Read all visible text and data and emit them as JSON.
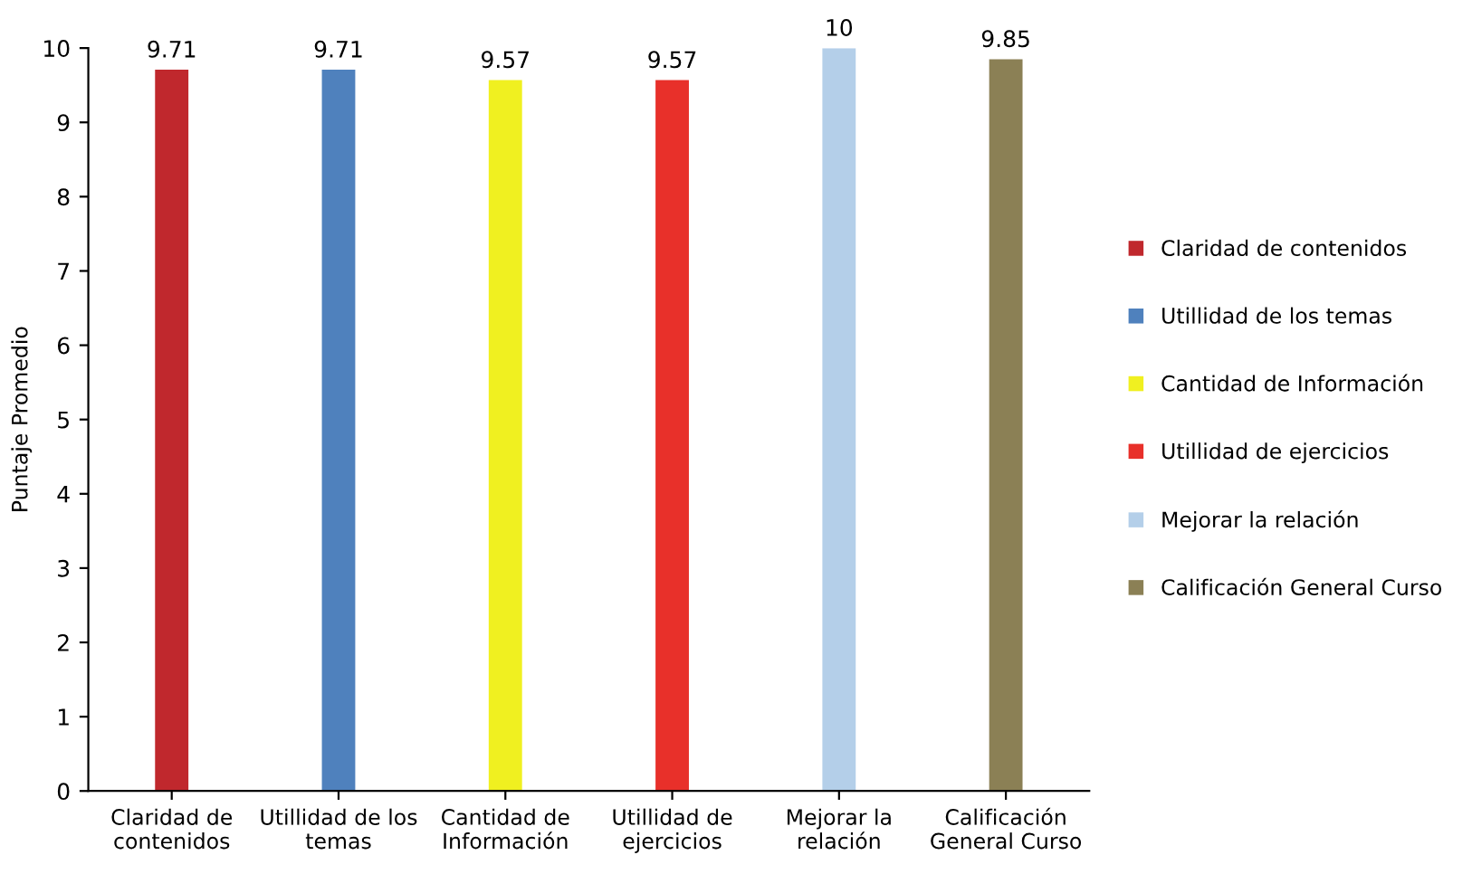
{
  "chart_data": {
    "type": "bar",
    "ylabel": "Puntaje Promedio",
    "categories": [
      "Claridad de\ncontenidos",
      "Utillidad de los\ntemas",
      "Cantidad de\nInformación",
      "Utillidad de\nejercicios",
      "Mejorar la\nrelación",
      "Calificación\nGeneral Curso"
    ],
    "series": [
      {
        "name": "Claridad de contenidos",
        "color": "#c0282d",
        "values": [
          9.71,
          null,
          null,
          null,
          null,
          null
        ]
      },
      {
        "name": "Utillidad de los temas",
        "color": "#4f81bd",
        "values": [
          null,
          9.71,
          null,
          null,
          null,
          null
        ]
      },
      {
        "name": "Cantidad de Información",
        "color": "#f0f020",
        "values": [
          null,
          null,
          9.57,
          null,
          null,
          null
        ]
      },
      {
        "name": "Utillidad de ejercicios",
        "color": "#e8302a",
        "values": [
          null,
          null,
          null,
          9.57,
          null,
          null
        ]
      },
      {
        "name": "Mejorar la relación",
        "color": "#b4cfe9",
        "values": [
          null,
          null,
          null,
          null,
          10,
          null
        ]
      },
      {
        "name": "Calificación General Curso",
        "color": "#8b8055",
        "values": [
          null,
          null,
          null,
          null,
          null,
          9.85
        ]
      }
    ],
    "ylim": [
      0,
      10
    ],
    "yticks": [
      0,
      1,
      2,
      3,
      4,
      5,
      6,
      7,
      8,
      9,
      10
    ],
    "grid": false,
    "legend": "right",
    "data_labels": true
  }
}
